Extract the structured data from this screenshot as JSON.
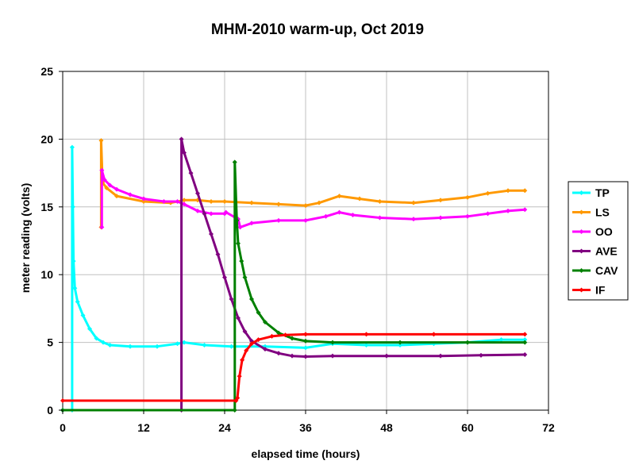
{
  "chart_data": {
    "type": "line",
    "title": "MHM-2010 warm-up, Oct 2019",
    "xlabel": "elapsed time (hours)",
    "ylabel": "meter reading (volts)",
    "xlim": [
      0,
      72
    ],
    "ylim": [
      0,
      25
    ],
    "xticks": [
      0,
      12,
      24,
      36,
      48,
      60,
      72
    ],
    "yticks": [
      0,
      5,
      10,
      15,
      20,
      25
    ],
    "grid": true,
    "legend_position": "right",
    "series": [
      {
        "name": "TP",
        "color": "#00ffff",
        "points": [
          [
            0,
            0
          ],
          [
            1.4,
            0
          ],
          [
            1.4,
            19.4
          ],
          [
            1.5,
            15
          ],
          [
            1.6,
            11
          ],
          [
            1.8,
            9
          ],
          [
            2.2,
            8
          ],
          [
            3,
            7
          ],
          [
            4,
            6
          ],
          [
            5,
            5.3
          ],
          [
            6,
            5
          ],
          [
            7,
            4.8
          ],
          [
            10,
            4.7
          ],
          [
            14,
            4.7
          ],
          [
            17,
            4.9
          ],
          [
            18,
            5.0
          ],
          [
            21,
            4.8
          ],
          [
            25,
            4.7
          ],
          [
            30,
            4.7
          ],
          [
            36,
            4.6
          ],
          [
            40,
            4.9
          ],
          [
            45,
            4.8
          ],
          [
            50,
            4.8
          ],
          [
            55,
            4.9
          ],
          [
            60,
            5.0
          ],
          [
            65,
            5.2
          ],
          [
            68.5,
            5.2
          ]
        ]
      },
      {
        "name": "LS",
        "color": "#ff9900",
        "points": [
          [
            5.7,
            13.5
          ],
          [
            5.7,
            19.9
          ],
          [
            5.9,
            16.8
          ],
          [
            6.5,
            16.4
          ],
          [
            8,
            15.8
          ],
          [
            12,
            15.4
          ],
          [
            16,
            15.3
          ],
          [
            18,
            15.5
          ],
          [
            20,
            15.5
          ],
          [
            22,
            15.4
          ],
          [
            24,
            15.4
          ],
          [
            28,
            15.3
          ],
          [
            32,
            15.2
          ],
          [
            36,
            15.1
          ],
          [
            38,
            15.3
          ],
          [
            41,
            15.8
          ],
          [
            44,
            15.6
          ],
          [
            47,
            15.4
          ],
          [
            52,
            15.3
          ],
          [
            56,
            15.5
          ],
          [
            60,
            15.7
          ],
          [
            63,
            16.0
          ],
          [
            66,
            16.2
          ],
          [
            68.5,
            16.2
          ]
        ]
      },
      {
        "name": "OO",
        "color": "#ff00ff",
        "points": [
          [
            5.8,
            13.5
          ],
          [
            5.8,
            17.7
          ],
          [
            6.2,
            17.0
          ],
          [
            7,
            16.6
          ],
          [
            8,
            16.3
          ],
          [
            10,
            15.9
          ],
          [
            12,
            15.6
          ],
          [
            15,
            15.4
          ],
          [
            17,
            15.4
          ],
          [
            18,
            15.2
          ],
          [
            20,
            14.7
          ],
          [
            22,
            14.5
          ],
          [
            24,
            14.5
          ],
          [
            24.2,
            14.6
          ],
          [
            26,
            14.1
          ],
          [
            26.3,
            13.5
          ],
          [
            28,
            13.8
          ],
          [
            32,
            14.0
          ],
          [
            36,
            14.0
          ],
          [
            39,
            14.3
          ],
          [
            41,
            14.6
          ],
          [
            43,
            14.4
          ],
          [
            47,
            14.2
          ],
          [
            52,
            14.1
          ],
          [
            56,
            14.2
          ],
          [
            60,
            14.3
          ],
          [
            63,
            14.5
          ],
          [
            66,
            14.7
          ],
          [
            68.5,
            14.8
          ]
        ]
      },
      {
        "name": "AVE",
        "color": "#800080",
        "points": [
          [
            17.6,
            0
          ],
          [
            17.6,
            20.0
          ],
          [
            18,
            19.0
          ],
          [
            19,
            17.5
          ],
          [
            20,
            16.0
          ],
          [
            21,
            14.5
          ],
          [
            22,
            13.0
          ],
          [
            23,
            11.5
          ],
          [
            24,
            9.8
          ],
          [
            25,
            8.2
          ],
          [
            26,
            6.8
          ],
          [
            27,
            5.8
          ],
          [
            28,
            5.1
          ],
          [
            30,
            4.5
          ],
          [
            32,
            4.2
          ],
          [
            34,
            4.0
          ],
          [
            36,
            3.95
          ],
          [
            40,
            4.0
          ],
          [
            48,
            4.0
          ],
          [
            56,
            4.0
          ],
          [
            62,
            4.05
          ],
          [
            68.5,
            4.1
          ]
        ]
      },
      {
        "name": "CAV",
        "color": "#008000",
        "points": [
          [
            0,
            0
          ],
          [
            25.5,
            0
          ],
          [
            25.5,
            18.3
          ],
          [
            25.8,
            14
          ],
          [
            26,
            12.3
          ],
          [
            26.5,
            11.0
          ],
          [
            27,
            9.8
          ],
          [
            28,
            8.2
          ],
          [
            29,
            7.2
          ],
          [
            30,
            6.5
          ],
          [
            32,
            5.7
          ],
          [
            34,
            5.3
          ],
          [
            36,
            5.1
          ],
          [
            40,
            5.0
          ],
          [
            50,
            5.0
          ],
          [
            60,
            5.0
          ],
          [
            68.5,
            5.0
          ]
        ]
      },
      {
        "name": "IF",
        "color": "#ff0000",
        "points": [
          [
            0,
            0.7
          ],
          [
            25.7,
            0.7
          ],
          [
            25.9,
            0.9
          ],
          [
            26.2,
            2.5
          ],
          [
            26.6,
            3.7
          ],
          [
            27.2,
            4.4
          ],
          [
            28,
            4.9
          ],
          [
            29,
            5.2
          ],
          [
            31,
            5.45
          ],
          [
            33,
            5.55
          ],
          [
            36,
            5.6
          ],
          [
            45,
            5.6
          ],
          [
            55,
            5.6
          ],
          [
            68.5,
            5.6
          ]
        ]
      }
    ]
  }
}
